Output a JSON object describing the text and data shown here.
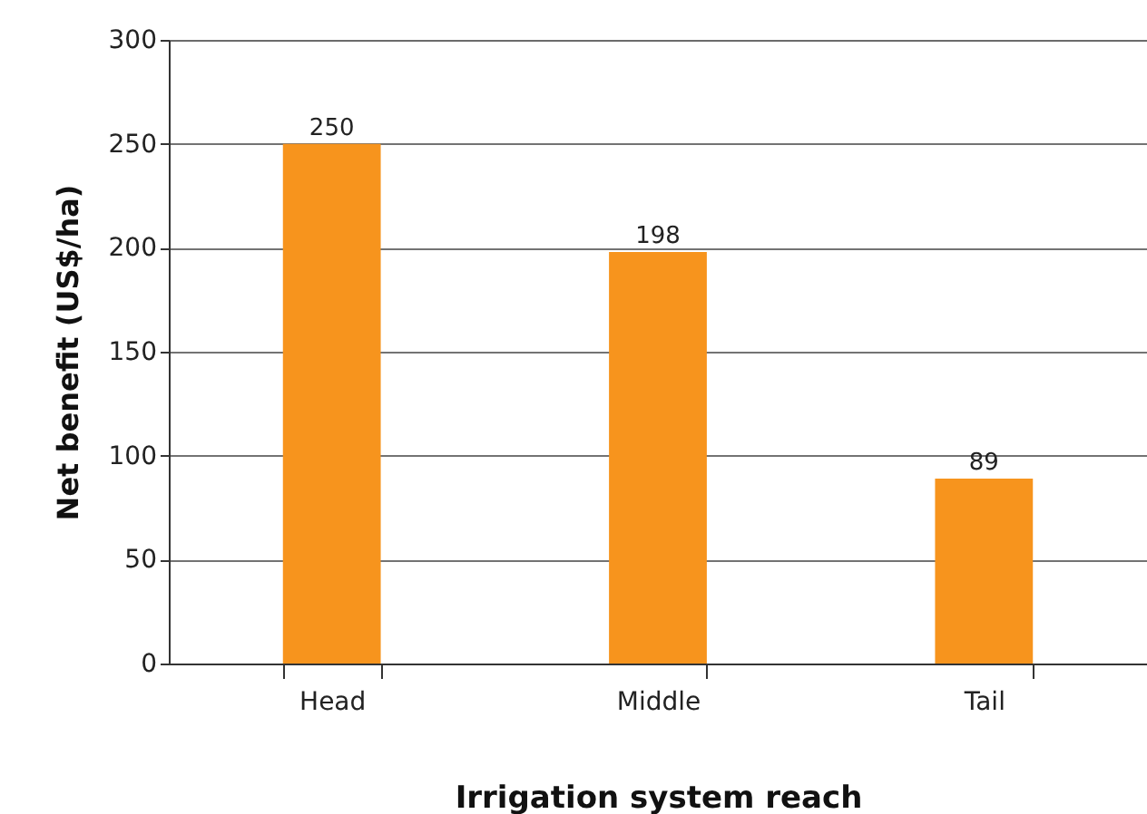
{
  "chart_data": {
    "type": "bar",
    "xlabel": "Irrigation system reach",
    "ylabel": "Net benefit (US$/ha)",
    "categories": [
      "Head",
      "Middle",
      "Tail"
    ],
    "values": [
      250,
      198,
      89
    ],
    "color": "#f7941d",
    "ylim": [
      0,
      300
    ],
    "yticks": [
      0,
      50,
      100,
      150,
      200,
      250,
      300
    ],
    "grid": "y",
    "data_labels": true
  }
}
